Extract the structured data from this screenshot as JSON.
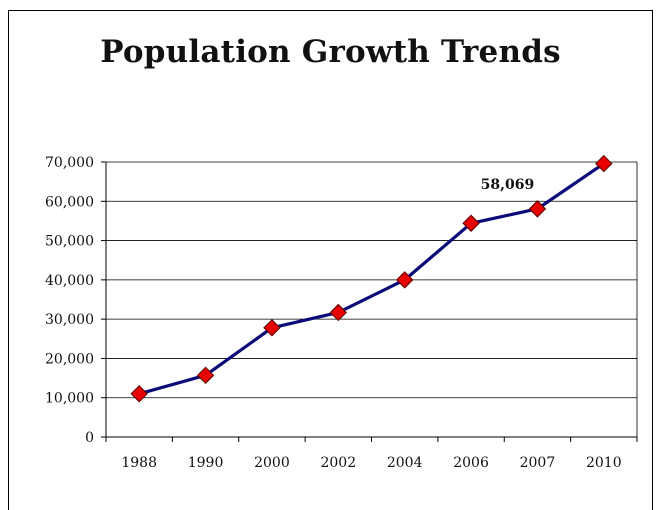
{
  "chart_data": {
    "type": "line",
    "title": "Population Growth Trends",
    "xlabel": "",
    "ylabel": "",
    "categories": [
      "1988",
      "1990",
      "2000",
      "2002",
      "2004",
      "2006",
      "2007",
      "2010"
    ],
    "series": [
      {
        "values": [
          11000,
          15700,
          27800,
          31700,
          40000,
          54400,
          58069,
          69600
        ]
      }
    ],
    "ylim": [
      0,
      70000
    ],
    "yticks": [
      0,
      10000,
      20000,
      30000,
      40000,
      50000,
      60000,
      70000
    ],
    "ytick_labels": [
      "0",
      "10,000",
      "20,000",
      "30,000",
      "40,000",
      "50,000",
      "60,000",
      "70,000"
    ],
    "data_labels": [
      {
        "category": "2007",
        "text": "58,069"
      }
    ],
    "grid": "horizontal",
    "legend": "none",
    "colors": {
      "line": "#0a0a78",
      "marker_fill": "#e60000",
      "marker_stroke": "#5a0000",
      "grid": "#000000"
    }
  }
}
